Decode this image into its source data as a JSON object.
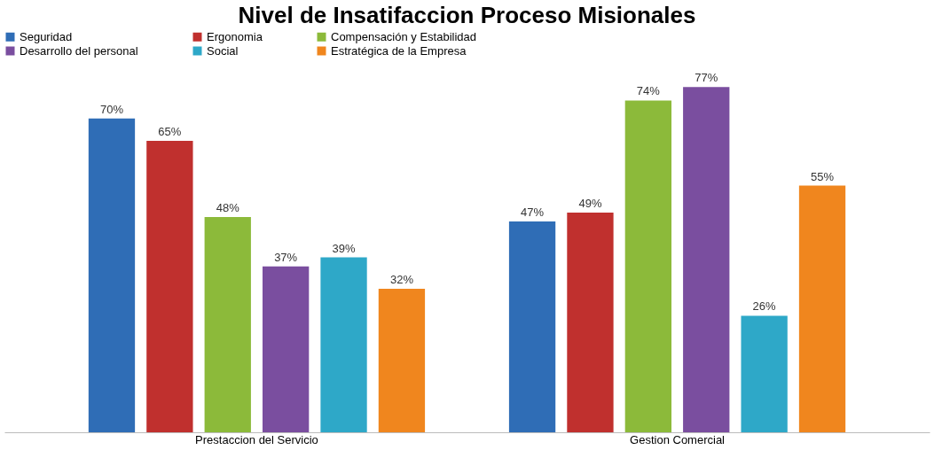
{
  "chart_data": {
    "type": "bar",
    "title": "Nivel de Insatifaccion Proceso Misionales",
    "categories": [
      "Prestaccion del Servicio",
      "Gestion Comercial"
    ],
    "series": [
      {
        "name": "Seguridad",
        "color": "#2f6db6",
        "values": [
          70,
          47
        ],
        "value_labels": [
          "70%",
          "47%"
        ]
      },
      {
        "name": "Ergonomia",
        "color": "#c0302e",
        "values": [
          65,
          49
        ],
        "value_labels": [
          "65%",
          "49%"
        ]
      },
      {
        "name": "Compensación y Estabilidad",
        "color": "#8cba3a",
        "values": [
          48,
          74
        ],
        "value_labels": [
          "48%",
          "74%"
        ]
      },
      {
        "name": "Desarrollo del personal",
        "color": "#7a4e9f",
        "values": [
          37,
          77
        ],
        "value_labels": [
          "37%",
          "77%"
        ]
      },
      {
        "name": "Social",
        "color": "#2ea8c8",
        "values": [
          39,
          26
        ],
        "value_labels": [
          "39%",
          "26%"
        ]
      },
      {
        "name": "Estratégica de la Empresa",
        "color": "#f0861e",
        "values": [
          32,
          55
        ],
        "value_labels": [
          "32%",
          "55%"
        ]
      }
    ],
    "legend": "top",
    "grid": false
  }
}
